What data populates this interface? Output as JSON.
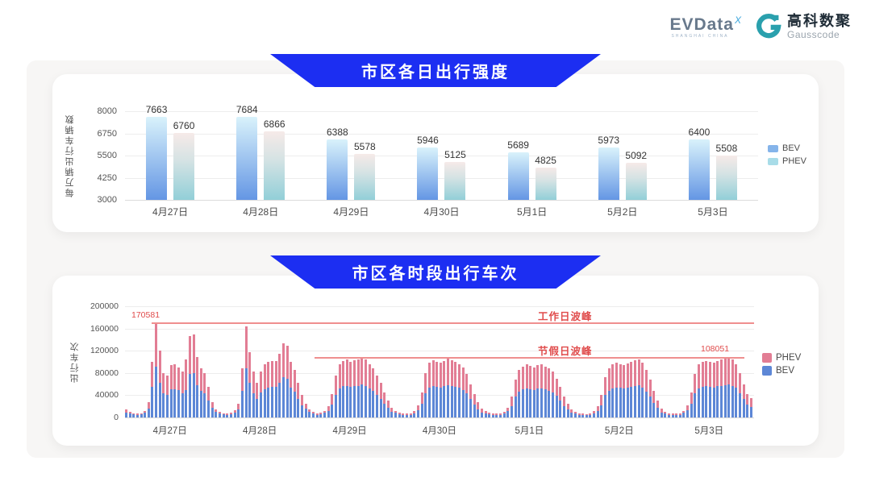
{
  "header": {
    "evdata": {
      "wordmark": "EVData",
      "sup": "X",
      "tagline": "SHANGHAI CHINA"
    },
    "gausscode": {
      "name_cn": "高科数聚",
      "name_en": "Gausscode"
    }
  },
  "colors": {
    "banner_blue": "#1c2ef2",
    "bev_daily_top": "#d9f2fb",
    "bev_daily_bottom": "#6496e4",
    "phev_daily_top": "#f6eae8",
    "phev_daily_bottom": "#92cfd8",
    "legend_bev_daily": "#85b4ea",
    "legend_phev_daily": "#a8dce8",
    "bev_hourly": "#5d87d6",
    "phev_hourly": "#e27d94",
    "annotation_red": "#e04b4b",
    "peak_line_red": "#ef8f8f",
    "logo_teal": "#2aa0ad",
    "logo_sup_blue": "#41a8dd"
  },
  "chart_data": [
    {
      "type": "bar",
      "title": "市区各日出行强度",
      "ylabel": "每万辆出行车辆数",
      "categories": [
        "4月27日",
        "4月28日",
        "4月29日",
        "4月30日",
        "5月1日",
        "5月2日",
        "5月3日"
      ],
      "series": [
        {
          "name": "BEV",
          "values": [
            7663,
            7684,
            6388,
            5946,
            5689,
            5973,
            6400
          ]
        },
        {
          "name": "PHEV",
          "values": [
            6760,
            6866,
            5578,
            5125,
            4825,
            5092,
            5508
          ]
        }
      ],
      "yticks": [
        3000,
        4250,
        5500,
        6750,
        8000
      ],
      "ylim": [
        3000,
        8000
      ],
      "grid": true,
      "legend_position": "right"
    },
    {
      "type": "bar",
      "stacked": true,
      "title": "市区各时段出行车次",
      "ylabel": "出行车次",
      "categories": [
        "4月27日",
        "4月28日",
        "4月29日",
        "4月30日",
        "5月1日",
        "5月2日",
        "5月3日"
      ],
      "bars_per_category": 24,
      "yticks": [
        0,
        40000,
        80000,
        120000,
        160000,
        200000
      ],
      "ylim": [
        0,
        200000
      ],
      "grid": true,
      "legend_position": "right",
      "legend_order": [
        "PHEV",
        "BEV"
      ],
      "annotations": {
        "workday_peak": {
          "label": "工作日波峰",
          "value": 170581,
          "value_label": "170581"
        },
        "holiday_peak": {
          "label": "节假日波峰",
          "value": 108051,
          "value_label": "108051"
        }
      },
      "series": [
        {
          "name": "BEV",
          "values": [
            9000,
            7000,
            6000,
            5000,
            6000,
            8000,
            16000,
            55000,
            91000,
            62000,
            43000,
            41000,
            51000,
            51000,
            49000,
            44000,
            50000,
            79000,
            80000,
            58000,
            48000,
            43000,
            30000,
            18000,
            10000,
            7000,
            6000,
            5000,
            6000,
            9000,
            15000,
            48000,
            88000,
            62000,
            44000,
            33000,
            45000,
            51000,
            54000,
            55000,
            55000,
            62000,
            72000,
            70000,
            54000,
            46000,
            34000,
            22000,
            16000,
            10000,
            7000,
            5000,
            6000,
            8000,
            12000,
            23000,
            41000,
            52000,
            56000,
            57000,
            55000,
            57000,
            57000,
            59000,
            57000,
            52000,
            48000,
            41000,
            34000,
            25000,
            17000,
            10000,
            8000,
            6000,
            5000,
            5000,
            5000,
            7000,
            13000,
            25000,
            44000,
            54000,
            57000,
            55000,
            54000,
            56000,
            58000,
            57000,
            55000,
            53000,
            50000,
            43000,
            33000,
            23000,
            15000,
            9000,
            7000,
            6000,
            5000,
            5000,
            5000,
            7000,
            11000,
            21000,
            37000,
            47000,
            51000,
            52000,
            51000,
            50000,
            52000,
            52000,
            51000,
            48000,
            45000,
            39000,
            30000,
            21000,
            14000,
            8000,
            7000,
            5000,
            5000,
            4000,
            5000,
            7000,
            12000,
            22000,
            40000,
            48000,
            52000,
            54000,
            53000,
            52000,
            53000,
            55000,
            57000,
            58000,
            54000,
            47000,
            37000,
            26000,
            17000,
            9000,
            7000,
            5000,
            5000,
            5000,
            5000,
            8000,
            13000,
            25000,
            43000,
            52000,
            55000,
            56000,
            55000,
            54000,
            56000,
            57000,
            58000,
            59000,
            57000,
            53000,
            44000,
            33000,
            23000,
            19000
          ]
        },
        {
          "name": "PHEV",
          "values": [
            5000,
            3000,
            2000,
            2000,
            2000,
            4000,
            11000,
            45000,
            79581,
            58000,
            37000,
            35000,
            43000,
            44000,
            41000,
            38000,
            55000,
            67000,
            69000,
            50000,
            41000,
            37000,
            25000,
            10000,
            5000,
            3000,
            2000,
            2000,
            3000,
            4000,
            10000,
            40000,
            76000,
            55000,
            38000,
            29000,
            38000,
            44000,
            46000,
            46000,
            47000,
            53000,
            62000,
            59000,
            46000,
            39000,
            29000,
            18000,
            9000,
            5000,
            3000,
            3000,
            3000,
            4000,
            8000,
            19000,
            34000,
            43000,
            46000,
            47000,
            45000,
            46000,
            47000,
            49000,
            47000,
            43000,
            40000,
            34000,
            28000,
            20000,
            13000,
            8000,
            4000,
            3000,
            3000,
            2000,
            3000,
            4000,
            9000,
            20000,
            36000,
            44000,
            46000,
            45000,
            44000,
            46000,
            48000,
            46000,
            45000,
            43000,
            40000,
            35000,
            27000,
            19000,
            13000,
            7000,
            4000,
            3000,
            2000,
            2000,
            3000,
            3000,
            7000,
            17000,
            31000,
            38000,
            41000,
            43000,
            42000,
            40000,
            42000,
            43000,
            41000,
            40000,
            37000,
            31000,
            25000,
            17000,
            11000,
            6000,
            3000,
            3000,
            2000,
            2000,
            3000,
            4000,
            8000,
            18000,
            32000,
            40000,
            43000,
            44000,
            43000,
            42000,
            44000,
            45000,
            46000,
            47000,
            44000,
            38000,
            31000,
            22000,
            13000,
            7000,
            3000,
            3000,
            2000,
            2000,
            3000,
            4000,
            9000,
            20000,
            35000,
            43000,
            45000,
            46000,
            45000,
            44000,
            46000,
            47000,
            48000,
            49051,
            47000,
            43000,
            36000,
            27000,
            19000,
            16000
          ]
        }
      ]
    }
  ]
}
